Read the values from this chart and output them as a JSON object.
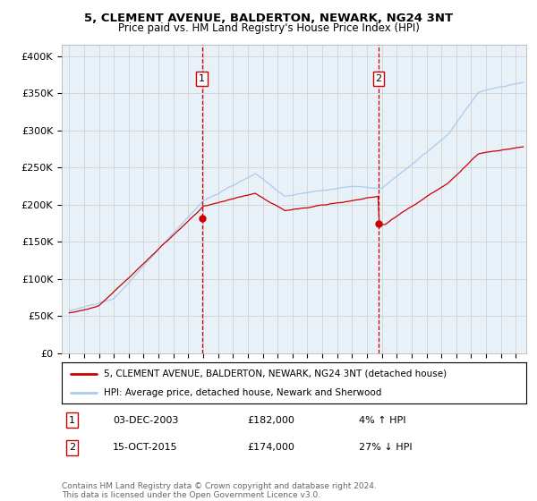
{
  "title1": "5, CLEMENT AVENUE, BALDERTON, NEWARK, NG24 3NT",
  "title2": "Price paid vs. HM Land Registry's House Price Index (HPI)",
  "ylabel_ticks": [
    "£0",
    "£50K",
    "£100K",
    "£150K",
    "£200K",
    "£250K",
    "£300K",
    "£350K",
    "£400K"
  ],
  "ylabel_values": [
    0,
    50000,
    100000,
    150000,
    200000,
    250000,
    300000,
    350000,
    400000
  ],
  "ylim": [
    0,
    415000
  ],
  "xlim_start": 1994.5,
  "xlim_end": 2025.7,
  "sale1_x": 2003.92,
  "sale1_y": 182000,
  "sale1_label": "1",
  "sale1_date": "03-DEC-2003",
  "sale1_price": "£182,000",
  "sale1_hpi": "4% ↑ HPI",
  "sale2_x": 2015.79,
  "sale2_y": 174000,
  "sale2_label": "2",
  "sale2_date": "15-OCT-2015",
  "sale2_price": "£174,000",
  "sale2_hpi": "27% ↓ HPI",
  "hpi_color": "#aaccee",
  "sale_color": "#cc0000",
  "vline_color": "#cc0000",
  "bg_color": "#e8f0f8",
  "plot_bg": "#ffffff",
  "grid_color": "#cccccc",
  "legend_label1": "5, CLEMENT AVENUE, BALDERTON, NEWARK, NG24 3NT (detached house)",
  "legend_label2": "HPI: Average price, detached house, Newark and Sherwood",
  "footnote": "Contains HM Land Registry data © Crown copyright and database right 2024.\nThis data is licensed under the Open Government Licence v3.0."
}
